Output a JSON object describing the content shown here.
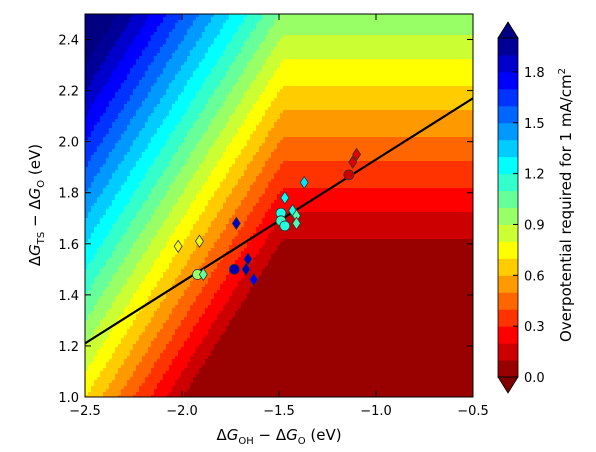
{
  "chart_data": {
    "type": "heatmap",
    "description_type": "contour plot with scatter points and linear fit",
    "xlim": [
      -2.5,
      -0.5
    ],
    "ylim": [
      1.0,
      2.5
    ],
    "x_ticks": [
      "−2.5",
      "−2.0",
      "−1.5",
      "−1.0",
      "−0.5"
    ],
    "x_tick_values": [
      -2.5,
      -2.0,
      -1.5,
      -1.0,
      -0.5
    ],
    "y_ticks": [
      "1.0",
      "1.2",
      "1.4",
      "1.6",
      "1.8",
      "2.0",
      "2.2",
      "2.4"
    ],
    "y_tick_values": [
      1.0,
      1.2,
      1.4,
      1.6,
      1.8,
      2.0,
      2.2,
      2.4
    ],
    "xlabel": "ΔG_OH − ΔG_O (eV)",
    "ylabel": "ΔG_TS − ΔG_O (eV)",
    "colorbar": {
      "label": "Overpotential required for 1 mA/cm²",
      "ticks": [
        "0.0",
        "0.3",
        "0.6",
        "0.9",
        "1.2",
        "1.5",
        "1.8"
      ],
      "tick_values": [
        0.0,
        0.3,
        0.6,
        0.9,
        1.2,
        1.5,
        1.8
      ],
      "range": [
        0.0,
        2.0
      ],
      "extend": "both",
      "colormap": "jet"
    },
    "contour": {
      "formula": "max(y − 1.52, min(y − 1.52, (y − 1.52) + 1.2*(x − (-1.48)) * -1 ) )",
      "levels_step": 0.1,
      "level_min": 0.0,
      "level_max": 2.0
    },
    "fit_line": {
      "x": [
        -2.5,
        -0.5
      ],
      "y": [
        1.21,
        2.17
      ]
    },
    "points": [
      {
        "shape": "diamond",
        "x": -2.02,
        "y": 1.59,
        "v": 0.75
      },
      {
        "shape": "diamond",
        "x": -1.91,
        "y": 1.61,
        "v": 0.78
      },
      {
        "shape": "circle",
        "x": -1.92,
        "y": 1.48,
        "v": 0.95
      },
      {
        "shape": "diamond",
        "x": -1.89,
        "y": 1.48,
        "v": 1.05
      },
      {
        "shape": "diamond",
        "x": -1.72,
        "y": 1.68,
        "v": 1.85
      },
      {
        "shape": "circle",
        "x": -1.73,
        "y": 1.5,
        "v": 1.9
      },
      {
        "shape": "diamond",
        "x": -1.66,
        "y": 1.54,
        "v": 1.85
      },
      {
        "shape": "diamond",
        "x": -1.67,
        "y": 1.5,
        "v": 1.88
      },
      {
        "shape": "diamond",
        "x": -1.63,
        "y": 1.46,
        "v": 1.75
      },
      {
        "shape": "circle",
        "x": -1.49,
        "y": 1.72,
        "v": 1.2
      },
      {
        "shape": "diamond",
        "x": -1.47,
        "y": 1.78,
        "v": 1.25
      },
      {
        "shape": "circle",
        "x": -1.49,
        "y": 1.69,
        "v": 1.15
      },
      {
        "shape": "circle",
        "x": -1.47,
        "y": 1.67,
        "v": 1.18
      },
      {
        "shape": "diamond",
        "x": -1.43,
        "y": 1.73,
        "v": 1.2
      },
      {
        "shape": "diamond",
        "x": -1.41,
        "y": 1.71,
        "v": 1.1
      },
      {
        "shape": "diamond",
        "x": -1.41,
        "y": 1.68,
        "v": 1.1
      },
      {
        "shape": "diamond",
        "x": -1.37,
        "y": 1.84,
        "v": 1.3
      },
      {
        "shape": "circle",
        "x": -1.14,
        "y": 1.87,
        "v": 0.15
      },
      {
        "shape": "diamond",
        "x": -1.12,
        "y": 1.92,
        "v": 0.18
      },
      {
        "shape": "diamond",
        "x": -1.1,
        "y": 1.95,
        "v": 0.2
      }
    ]
  }
}
